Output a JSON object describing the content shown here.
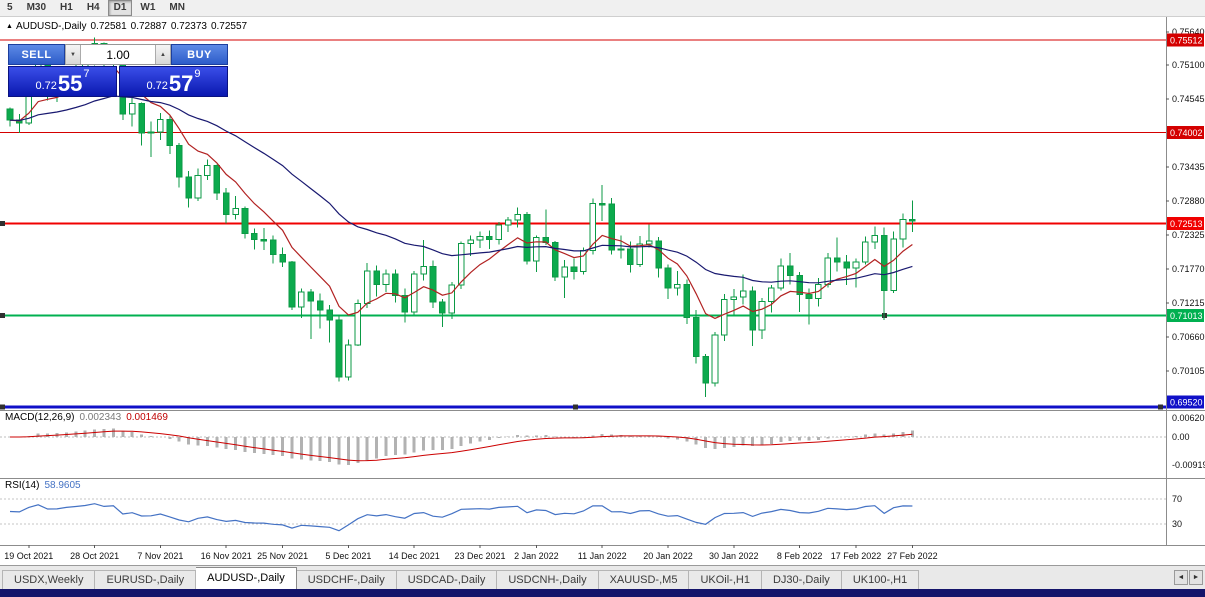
{
  "toolbar": {
    "timeframes": [
      {
        "label": "5",
        "active": false
      },
      {
        "label": "M30",
        "active": false
      },
      {
        "label": "H1",
        "active": false
      },
      {
        "label": "H4",
        "active": false
      },
      {
        "label": "D1",
        "active": true
      },
      {
        "label": "W1",
        "active": false
      },
      {
        "label": "MN",
        "active": false
      }
    ]
  },
  "chart_header": {
    "collapse_icon": "▲",
    "symbol": "AUDUSD-,Daily",
    "open": "0.72581",
    "high": "0.72887",
    "low": "0.72373",
    "close": "0.72557"
  },
  "one_click": {
    "sell_label": "SELL",
    "buy_label": "BUY",
    "volume": "1.00",
    "decrement_icon": "▼",
    "increment_icon": "▲",
    "sell_price": {
      "prefix": "0.72",
      "big": "55",
      "sup": "7"
    },
    "buy_price": {
      "prefix": "0.72",
      "big": "57",
      "sup": "9"
    }
  },
  "tabs": {
    "scroll_left": "◄",
    "scroll_right": "►",
    "items": [
      {
        "label": "USDX,Weekly",
        "active": false
      },
      {
        "label": "EURUSD-,Daily",
        "active": false
      },
      {
        "label": "AUDUSD-,Daily",
        "active": true
      },
      {
        "label": "USDCHF-,Daily",
        "active": false
      },
      {
        "label": "USDCAD-,Daily",
        "active": false
      },
      {
        "label": "USDCNH-,Daily",
        "active": false
      },
      {
        "label": "XAUUSD-,M5",
        "active": false
      },
      {
        "label": "UKOil-,H1",
        "active": false
      },
      {
        "label": "DJ30-,Daily",
        "active": false
      },
      {
        "label": "UK100-,H1",
        "active": false
      }
    ]
  },
  "chart_data": {
    "type": "candlestick",
    "title": "AUDUSD-,Daily",
    "current_bar": {
      "open": 0.72581,
      "high": 0.72887,
      "low": 0.72373,
      "close": 0.72557
    },
    "y_axis": {
      "visible_range": [
        0.69516,
        0.75885
      ],
      "labels": [
        {
          "text": "0.75640",
          "value": 0.7564
        },
        {
          "text": "0.75100",
          "value": 0.751
        },
        {
          "text": "0.74545",
          "value": 0.74545
        },
        {
          "text": "0.73435",
          "value": 0.73435
        },
        {
          "text": "0.72880",
          "value": 0.7288
        },
        {
          "text": "0.72325",
          "value": 0.72325
        },
        {
          "text": "0.71770",
          "value": 0.7177
        },
        {
          "text": "0.71215",
          "value": 0.71215
        },
        {
          "text": "0.70660",
          "value": 0.7066
        },
        {
          "text": "0.70105",
          "value": 0.70105
        }
      ]
    },
    "x_axis": {
      "labels": [
        {
          "text": "19 Oct 2021",
          "i": 2
        },
        {
          "text": "28 Oct 2021",
          "i": 9
        },
        {
          "text": "7 Nov 2021",
          "i": 16
        },
        {
          "text": "16 Nov 2021",
          "i": 23
        },
        {
          "text": "25 Nov 2021",
          "i": 29
        },
        {
          "text": "5 Dec 2021",
          "i": 36
        },
        {
          "text": "14 Dec 2021",
          "i": 43
        },
        {
          "text": "23 Dec 2021",
          "i": 50
        },
        {
          "text": "2 Jan 2022",
          "i": 56
        },
        {
          "text": "11 Jan 2022",
          "i": 63
        },
        {
          "text": "20 Jan 2022",
          "i": 70
        },
        {
          "text": "30 Jan 2022",
          "i": 77
        },
        {
          "text": "8 Feb 2022",
          "i": 84
        },
        {
          "text": "17 Feb 2022",
          "i": 90
        },
        {
          "text": "27 Feb 2022",
          "i": 96
        }
      ]
    },
    "dates": [
      "2021.10.15",
      "2021.10.18",
      "2021.10.19",
      "2021.10.20",
      "2021.10.21",
      "2021.10.22",
      "2021.10.25",
      "2021.10.26",
      "2021.10.27",
      "2021.10.28",
      "2021.10.29",
      "2021.11.01",
      "2021.11.02",
      "2021.11.03",
      "2021.11.04",
      "2021.11.05",
      "2021.11.08",
      "2021.11.09",
      "2021.11.10",
      "2021.11.11",
      "2021.11.12",
      "2021.11.15",
      "2021.11.16",
      "2021.11.17",
      "2021.11.18",
      "2021.11.19",
      "2021.11.22",
      "2021.11.23",
      "2021.11.24",
      "2021.11.25",
      "2021.11.26",
      "2021.11.29",
      "2021.11.30",
      "2021.12.01",
      "2021.12.02",
      "2021.12.03",
      "2021.12.06",
      "2021.12.07",
      "2021.12.08",
      "2021.12.09",
      "2021.12.10",
      "2021.12.13",
      "2021.12.14",
      "2021.12.15",
      "2021.12.16",
      "2021.12.17",
      "2021.12.20",
      "2021.12.21",
      "2021.12.22",
      "2021.12.23",
      "2021.12.27",
      "2021.12.28",
      "2021.12.29",
      "2021.12.30",
      "2021.12.31",
      "2022.01.03",
      "2022.01.04",
      "2022.01.05",
      "2022.01.06",
      "2022.01.07",
      "2022.01.10",
      "2022.01.11",
      "2022.01.12",
      "2022.01.13",
      "2022.01.14",
      "2022.01.17",
      "2022.01.18",
      "2022.01.19",
      "2022.01.20",
      "2022.01.21",
      "2022.01.24",
      "2022.01.25",
      "2022.01.26",
      "2022.01.27",
      "2022.01.28",
      "2022.01.31",
      "2022.02.01",
      "2022.02.02",
      "2022.02.03",
      "2022.02.04",
      "2022.02.07",
      "2022.02.08",
      "2022.02.09",
      "2022.02.10",
      "2022.02.11",
      "2022.02.14",
      "2022.02.15",
      "2022.02.16",
      "2022.02.17",
      "2022.02.18",
      "2022.02.21",
      "2022.02.22",
      "2022.02.23",
      "2022.02.24",
      "2022.02.25",
      "2022.02.28",
      "2022.03.01"
    ],
    "candles": [
      [
        0.7438,
        0.7441,
        0.741,
        0.742
      ],
      [
        0.742,
        0.743,
        0.7399,
        0.7415
      ],
      [
        0.7415,
        0.7483,
        0.7412,
        0.7475
      ],
      [
        0.7475,
        0.7525,
        0.747,
        0.7517
      ],
      [
        0.7517,
        0.752,
        0.7452,
        0.7467
      ],
      [
        0.7467,
        0.7478,
        0.745,
        0.7468
      ],
      [
        0.7468,
        0.7502,
        0.7462,
        0.7489
      ],
      [
        0.7489,
        0.7511,
        0.7478,
        0.7503
      ],
      [
        0.7503,
        0.7523,
        0.7491,
        0.7517
      ],
      [
        0.7517,
        0.7555,
        0.7509,
        0.7545
      ],
      [
        0.7545,
        0.7547,
        0.7498,
        0.7518
      ],
      [
        0.7518,
        0.7536,
        0.7483,
        0.7527
      ],
      [
        0.7527,
        0.7535,
        0.742,
        0.743
      ],
      [
        0.743,
        0.7456,
        0.741,
        0.7447
      ],
      [
        0.7447,
        0.7449,
        0.7379,
        0.7399
      ],
      [
        0.7399,
        0.7418,
        0.736,
        0.7401
      ],
      [
        0.7401,
        0.7432,
        0.7388,
        0.7421
      ],
      [
        0.7421,
        0.7428,
        0.7365,
        0.7379
      ],
      [
        0.7379,
        0.7383,
        0.731,
        0.7327
      ],
      [
        0.7327,
        0.7337,
        0.7277,
        0.7293
      ],
      [
        0.7293,
        0.7341,
        0.7288,
        0.733
      ],
      [
        0.733,
        0.7356,
        0.7322,
        0.7346
      ],
      [
        0.7346,
        0.7348,
        0.729,
        0.7301
      ],
      [
        0.7301,
        0.7309,
        0.7251,
        0.7266
      ],
      [
        0.7266,
        0.7296,
        0.7258,
        0.7276
      ],
      [
        0.7276,
        0.7279,
        0.7227,
        0.7235
      ],
      [
        0.7235,
        0.7243,
        0.7209,
        0.7225
      ],
      [
        0.7225,
        0.7244,
        0.7208,
        0.7224
      ],
      [
        0.7224,
        0.7232,
        0.7186,
        0.7201
      ],
      [
        0.7201,
        0.7212,
        0.718,
        0.7188
      ],
      [
        0.7188,
        0.719,
        0.711,
        0.7115
      ],
      [
        0.7115,
        0.7145,
        0.7097,
        0.7139
      ],
      [
        0.7139,
        0.7144,
        0.7063,
        0.7125
      ],
      [
        0.7125,
        0.7137,
        0.708,
        0.711
      ],
      [
        0.711,
        0.7118,
        0.7057,
        0.7094
      ],
      [
        0.7094,
        0.7102,
        0.6993,
        0.7001
      ],
      [
        0.7001,
        0.7062,
        0.6995,
        0.7053
      ],
      [
        0.7053,
        0.7127,
        0.7051,
        0.7121
      ],
      [
        0.7121,
        0.7187,
        0.7113,
        0.7174
      ],
      [
        0.7174,
        0.7183,
        0.7132,
        0.7152
      ],
      [
        0.7152,
        0.7176,
        0.7139,
        0.7169
      ],
      [
        0.7169,
        0.7176,
        0.7122,
        0.7134
      ],
      [
        0.7134,
        0.7145,
        0.709,
        0.7107
      ],
      [
        0.7107,
        0.7174,
        0.7103,
        0.7169
      ],
      [
        0.7169,
        0.7224,
        0.7158,
        0.7181
      ],
      [
        0.7181,
        0.7191,
        0.7113,
        0.7123
      ],
      [
        0.7123,
        0.7128,
        0.7082,
        0.7105
      ],
      [
        0.7105,
        0.7156,
        0.7095,
        0.7151
      ],
      [
        0.7151,
        0.7222,
        0.7144,
        0.7219
      ],
      [
        0.7219,
        0.7232,
        0.7198,
        0.7224
      ],
      [
        0.7224,
        0.7238,
        0.7211,
        0.723
      ],
      [
        0.723,
        0.724,
        0.721,
        0.7225
      ],
      [
        0.7225,
        0.7254,
        0.7217,
        0.7249
      ],
      [
        0.7249,
        0.7262,
        0.7237,
        0.7257
      ],
      [
        0.7257,
        0.7277,
        0.7245,
        0.7266
      ],
      [
        0.7266,
        0.727,
        0.7184,
        0.719
      ],
      [
        0.719,
        0.7232,
        0.7172,
        0.7228
      ],
      [
        0.7228,
        0.7274,
        0.7216,
        0.722
      ],
      [
        0.722,
        0.7223,
        0.7157,
        0.7164
      ],
      [
        0.7164,
        0.7192,
        0.713,
        0.718
      ],
      [
        0.718,
        0.7194,
        0.716,
        0.7173
      ],
      [
        0.7173,
        0.7212,
        0.7168,
        0.7207
      ],
      [
        0.7207,
        0.7292,
        0.7201,
        0.7284
      ],
      [
        0.7284,
        0.7314,
        0.7255,
        0.7283
      ],
      [
        0.7283,
        0.7293,
        0.7201,
        0.7208
      ],
      [
        0.7208,
        0.7232,
        0.7194,
        0.721
      ],
      [
        0.721,
        0.7222,
        0.7171,
        0.7184
      ],
      [
        0.7184,
        0.7231,
        0.718,
        0.7218
      ],
      [
        0.7218,
        0.725,
        0.7212,
        0.7223
      ],
      [
        0.7223,
        0.7229,
        0.7163,
        0.7179
      ],
      [
        0.7179,
        0.7184,
        0.7128,
        0.7146
      ],
      [
        0.7146,
        0.7174,
        0.7134,
        0.7152
      ],
      [
        0.7152,
        0.716,
        0.7087,
        0.7098
      ],
      [
        0.7098,
        0.711,
        0.7023,
        0.7034
      ],
      [
        0.7034,
        0.7038,
        0.6968,
        0.6991
      ],
      [
        0.6991,
        0.7074,
        0.6985,
        0.7069
      ],
      [
        0.7069,
        0.7136,
        0.7059,
        0.7127
      ],
      [
        0.7127,
        0.7144,
        0.7101,
        0.7131
      ],
      [
        0.7131,
        0.7168,
        0.7119,
        0.7141
      ],
      [
        0.7141,
        0.7148,
        0.7051,
        0.7077
      ],
      [
        0.7077,
        0.713,
        0.7063,
        0.7124
      ],
      [
        0.7124,
        0.7151,
        0.7106,
        0.7146
      ],
      [
        0.7146,
        0.7194,
        0.7142,
        0.7182
      ],
      [
        0.7182,
        0.7203,
        0.7152,
        0.7166
      ],
      [
        0.7166,
        0.7172,
        0.7107,
        0.7135
      ],
      [
        0.7135,
        0.7145,
        0.7086,
        0.7129
      ],
      [
        0.7129,
        0.7162,
        0.7116,
        0.7152
      ],
      [
        0.7152,
        0.7203,
        0.7147,
        0.7195
      ],
      [
        0.7195,
        0.7228,
        0.7173,
        0.7188
      ],
      [
        0.7188,
        0.72,
        0.7151,
        0.7179
      ],
      [
        0.7179,
        0.7194,
        0.7147,
        0.7188
      ],
      [
        0.7188,
        0.723,
        0.7184,
        0.7221
      ],
      [
        0.7221,
        0.7246,
        0.721,
        0.7232
      ],
      [
        0.7232,
        0.7245,
        0.7094,
        0.7142
      ],
      [
        0.7142,
        0.7238,
        0.7138,
        0.7226
      ],
      [
        0.7226,
        0.7268,
        0.7212,
        0.7258
      ],
      [
        0.72581,
        0.72887,
        0.72373,
        0.72557
      ]
    ],
    "overlays": [
      {
        "name": "ma-fast",
        "type": "ema",
        "period": 8,
        "color": "#b22222"
      },
      {
        "name": "ma-slow",
        "type": "ema",
        "period": 32,
        "color": "#191970"
      }
    ],
    "levels": [
      {
        "price": 0.75512,
        "label": "0.75512",
        "color": "#d40000",
        "width": 1,
        "handles": []
      },
      {
        "price": 0.74002,
        "label": "0.74002",
        "color": "#d40000",
        "width": 1,
        "handles": []
      },
      {
        "price": 0.72513,
        "label": "0.72513",
        "color": "#f00000",
        "width": 2,
        "handles": [
          2
        ]
      },
      {
        "price": 0.71013,
        "label": "0.71013",
        "color": "#00b050",
        "width": 2,
        "handles": [
          2,
          884
        ]
      },
      {
        "price": 0.6952,
        "label": "0.69520",
        "color": "#1010c8",
        "width": 3,
        "handles": [
          2,
          575,
          1160
        ]
      }
    ],
    "indicators": {
      "macd": {
        "name": "MACD(12,26,9)",
        "main": "0.002343",
        "signal": "0.001469",
        "histogram_color": "#b2b2b2",
        "signal_color": "#cc0000",
        "scale": [
          {
            "text": "0.006201",
            "v": 0.006201
          },
          {
            "text": "0.00",
            "v": 0
          },
          {
            "text": "-0.00919",
            "v": -0.00919
          }
        ]
      },
      "rsi": {
        "name": "RSI(14)",
        "value": "58.9605",
        "color": "#4472c4",
        "levels": [
          70,
          30
        ]
      }
    }
  }
}
